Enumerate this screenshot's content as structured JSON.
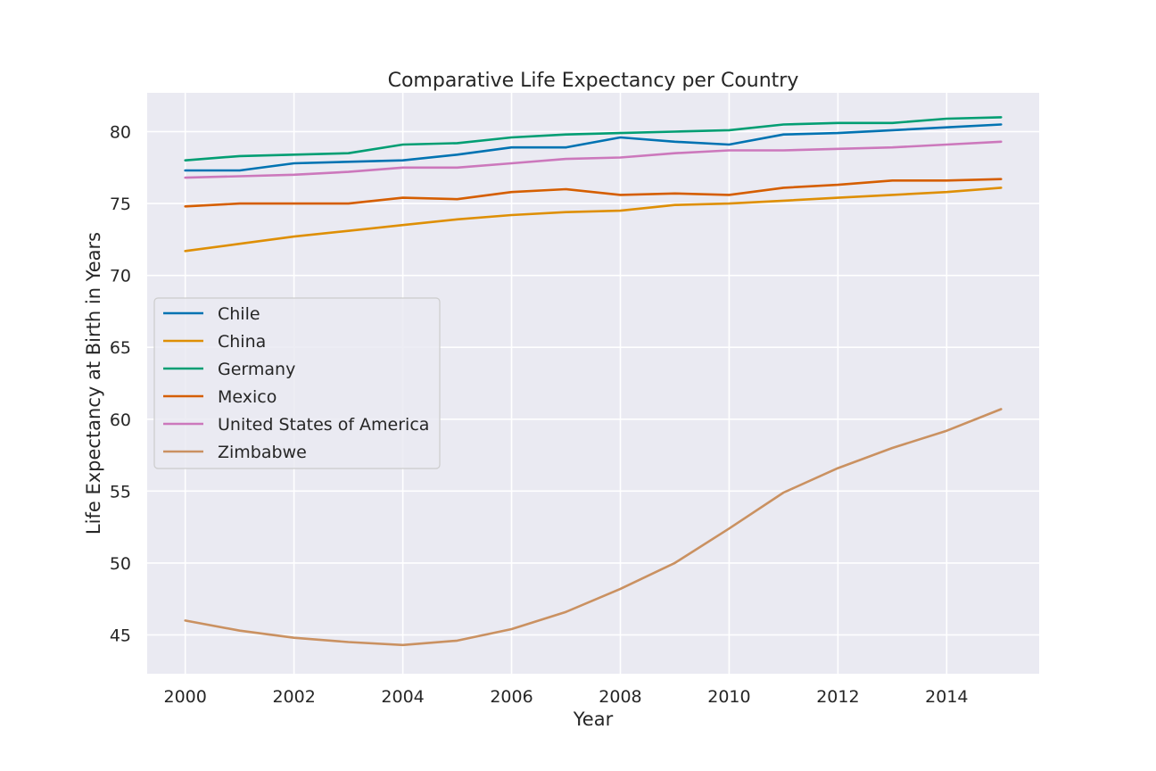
{
  "chart_data": {
    "type": "line",
    "title": "Comparative Life Expectancy per Country",
    "xlabel": "Year",
    "ylabel": "Life Expectancy at Birth in Years",
    "xlim": [
      1999.3,
      2015.7
    ],
    "ylim": [
      42.3,
      82.7
    ],
    "xticks": [
      2000,
      2002,
      2004,
      2006,
      2008,
      2010,
      2012,
      2014
    ],
    "yticks": [
      45,
      50,
      55,
      60,
      65,
      70,
      75,
      80
    ],
    "grid": true,
    "legend_position": "center-left",
    "x": [
      2000,
      2001,
      2002,
      2003,
      2004,
      2005,
      2006,
      2007,
      2008,
      2009,
      2010,
      2011,
      2012,
      2013,
      2014,
      2015
    ],
    "series": [
      {
        "name": "Chile",
        "color": "#0173b2",
        "values": [
          77.3,
          77.3,
          77.8,
          77.9,
          78.0,
          78.4,
          78.9,
          78.9,
          79.6,
          79.3,
          79.1,
          79.8,
          79.9,
          80.1,
          80.3,
          80.5
        ]
      },
      {
        "name": "China",
        "color": "#de8f05",
        "values": [
          71.7,
          72.2,
          72.7,
          73.1,
          73.5,
          73.9,
          74.2,
          74.4,
          74.5,
          74.9,
          75.0,
          75.2,
          75.4,
          75.6,
          75.8,
          76.1
        ]
      },
      {
        "name": "Germany",
        "color": "#029e73",
        "values": [
          78.0,
          78.3,
          78.4,
          78.5,
          79.1,
          79.2,
          79.6,
          79.8,
          79.9,
          80.0,
          80.1,
          80.5,
          80.6,
          80.6,
          80.9,
          81.0
        ]
      },
      {
        "name": "Mexico",
        "color": "#d55e00",
        "values": [
          74.8,
          75.0,
          75.0,
          75.0,
          75.4,
          75.3,
          75.8,
          76.0,
          75.6,
          75.7,
          75.6,
          76.1,
          76.3,
          76.6,
          76.6,
          76.7
        ]
      },
      {
        "name": "United States of America",
        "color": "#cc78bc",
        "values": [
          76.8,
          76.9,
          77.0,
          77.2,
          77.5,
          77.5,
          77.8,
          78.1,
          78.2,
          78.5,
          78.7,
          78.7,
          78.8,
          78.9,
          79.1,
          79.3
        ]
      },
      {
        "name": "Zimbabwe",
        "color": "#ca9161",
        "values": [
          46.0,
          45.3,
          44.8,
          44.5,
          44.3,
          44.6,
          45.4,
          46.6,
          48.2,
          50.0,
          52.4,
          54.9,
          56.6,
          58.0,
          59.2,
          60.7
        ]
      }
    ]
  }
}
